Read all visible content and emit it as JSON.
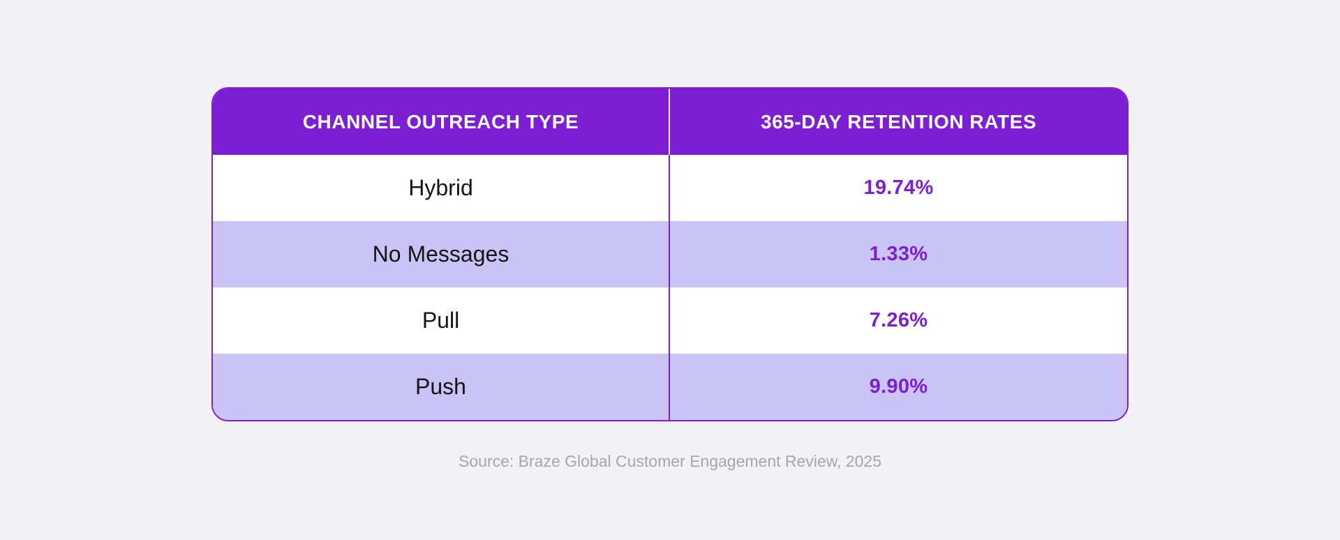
{
  "theme": {
    "accent": "#7C1FD4",
    "rowalt": "#CAC3F6",
    "pagebg": "#F2F1F6",
    "headertext": "#FFFFFF",
    "labeltext": "#141414",
    "sourcetext": "#A7A5AD"
  },
  "table": {
    "header": {
      "col1": "CHANNEL OUTREACH TYPE",
      "col2": "365-DAY RETENTION RATES"
    },
    "rows": [
      {
        "label": "Hybrid",
        "value": "19.74%"
      },
      {
        "label": "No Messages",
        "value": "1.33%"
      },
      {
        "label": "Pull",
        "value": "7.26%"
      },
      {
        "label": "Push",
        "value": "9.90%"
      }
    ]
  },
  "source": {
    "text": "Source: Braze Global Customer Engagement Review, 2025"
  },
  "chart_data": {
    "type": "table",
    "title": "",
    "columns": [
      "Channel Outreach Type",
      "365-Day Retention Rates"
    ],
    "categories": [
      "Hybrid",
      "No Messages",
      "Pull",
      "Push"
    ],
    "values": [
      19.74,
      1.33,
      7.26,
      9.9
    ],
    "value_unit": "%",
    "source": "Source: Braze Global Customer Engagement Review, 2025",
    "layout_hints": {
      "header_background": "#7C1FD4",
      "alternating_row_background": "#CAC3F6",
      "value_text_color": "#7C1FD4",
      "grid": "vertical-divider-only",
      "rounded_corners": true
    }
  }
}
